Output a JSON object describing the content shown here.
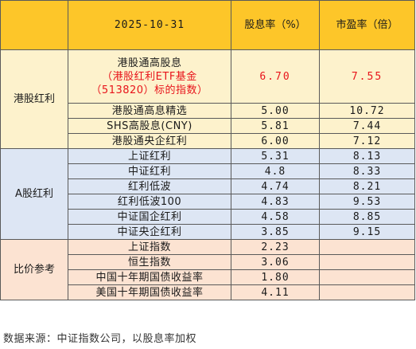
{
  "header": {
    "date": "2025-10-31",
    "dividend_yield_label": "股息率（%）",
    "pe_label": "市盈率（倍）"
  },
  "groups": {
    "hk": "港股红利",
    "a": "A股红利",
    "compare": "比价参考"
  },
  "featured": {
    "line1": "港股通高股息",
    "line2": "（港股红利ETF基金",
    "line3": "（513820）标的指数）",
    "yield": "6.70",
    "pe": "7.55"
  },
  "hk_rows": [
    {
      "name": "港股通高息精选",
      "yield": "5.00",
      "pe": "10.72"
    },
    {
      "name": "SHS高股息(CNY)",
      "yield": "5.81",
      "pe": "7.44"
    },
    {
      "name": "港股通央企红利",
      "yield": "6.00",
      "pe": "7.12"
    }
  ],
  "a_rows": [
    {
      "name": "上证红利",
      "yield": "5.31",
      "pe": "8.13"
    },
    {
      "name": "中证红利",
      "yield": "4.8",
      "pe": "8.33"
    },
    {
      "name": "红利低波",
      "yield": "4.74",
      "pe": "8.21"
    },
    {
      "name": "红利低波100",
      "yield": "4.83",
      "pe": "9.53"
    },
    {
      "name": "中证国企红利",
      "yield": "4.58",
      "pe": "8.85"
    },
    {
      "name": "中证央企红利",
      "yield": "3.85",
      "pe": "9.15"
    }
  ],
  "compare_rows": [
    {
      "name": "上证指数",
      "yield": "2.23",
      "pe": ""
    },
    {
      "name": "恒生指数",
      "yield": "3.06",
      "pe": ""
    },
    {
      "name": "中国十年期国债收益率",
      "yield": "1.80",
      "pe": ""
    },
    {
      "name": "美国十年期国债收益率",
      "yield": "4.11",
      "pe": ""
    }
  ],
  "footnote": "数据来源：中证指数公司，以股息率加权",
  "colors": {
    "header_bg": "#fdc629",
    "hk_bg": "#fdf2cc",
    "a_bg": "#dde6f4",
    "compare_bg": "#fce3d2",
    "highlight_red": "#e8141b"
  }
}
